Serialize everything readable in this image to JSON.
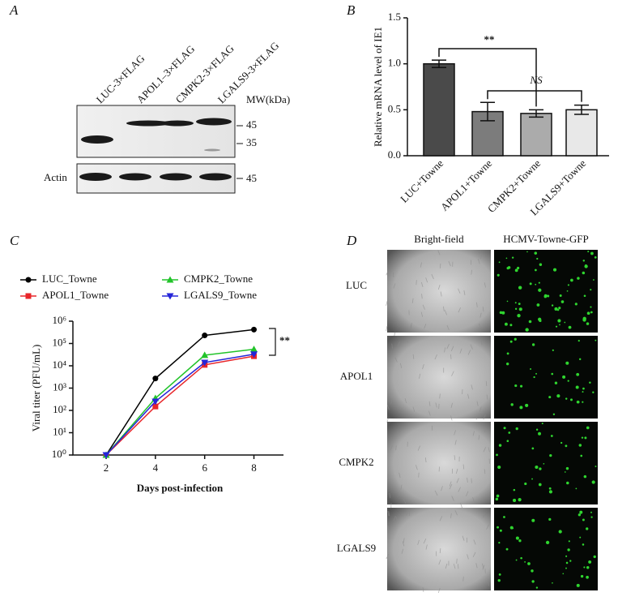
{
  "blot": {
    "panel": "A",
    "lanes": [
      "LUC-3×FLAG",
      "APOL1–3×FLAG",
      "CMPK2-3×FLAG",
      "LGALS9-3×FLAG"
    ],
    "mw_header": "MW(kDa)",
    "mw_top": [
      "45",
      "35"
    ],
    "loading_label": "Actin",
    "mw_bottom": "45"
  },
  "chart_data": [
    {
      "type": "bar",
      "panel": "B",
      "y_label": "Relative mRNA level of IE1",
      "categories": [
        "LUC+Towne",
        "APOL1+Towne",
        "CMPK2+Towne",
        "LGALS9+Towne"
      ],
      "values": [
        1.0,
        0.48,
        0.46,
        0.5
      ],
      "errors": [
        0.04,
        0.1,
        0.04,
        0.05
      ],
      "colors": [
        "#4a4a4a",
        "#7c7c7c",
        "#ababab",
        "#e8e8e8"
      ],
      "ylim": [
        0,
        1.5
      ],
      "yticks": [
        {
          "value": 0,
          "label": "0.0"
        },
        {
          "value": 0.5,
          "label": "0.5"
        },
        {
          "value": 1,
          "label": "1.0"
        },
        {
          "value": 1.5,
          "label": "1.5"
        }
      ],
      "annotations": [
        "**",
        "NS"
      ]
    },
    {
      "type": "line",
      "panel": "C",
      "y_label": "Viral titer (PFU/mL)",
      "x_label": "Days post-infection",
      "log_y": true,
      "x": [
        2,
        4,
        6,
        8
      ],
      "xlim": [
        0.65,
        9.2
      ],
      "xticks": [
        2,
        4,
        6,
        8
      ],
      "ylim": [
        1,
        1000000
      ],
      "yticks": [
        {
          "value": 1,
          "label": "10⁰"
        },
        {
          "value": 10,
          "label": "10¹"
        },
        {
          "value": 100,
          "label": "10²"
        },
        {
          "value": 1000,
          "label": "10³"
        },
        {
          "value": 10000,
          "label": "10⁴"
        },
        {
          "value": 100000,
          "label": "10⁵"
        },
        {
          "value": 1000000,
          "label": "10⁶"
        }
      ],
      "series": [
        {
          "name": "LUC_Towne",
          "color": "#000000",
          "marker": "circle",
          "values": [
            1,
            2700,
            230000,
            420000
          ]
        },
        {
          "name": "APOL1_Towne",
          "color": "#e8262a",
          "marker": "square",
          "values": [
            1,
            150,
            11000,
            27000
          ]
        },
        {
          "name": "CMPK2_Towne",
          "color": "#22c32a",
          "marker": "triangle-up",
          "values": [
            1,
            350,
            30000,
            55000
          ]
        },
        {
          "name": "LGALS9_Towne",
          "color": "#2525d8",
          "marker": "triangle-down",
          "values": [
            1,
            250,
            14000,
            33000
          ]
        }
      ],
      "annotations": [
        "**"
      ]
    }
  ],
  "micrographs": {
    "panel": "D",
    "columns": [
      "Bright-field",
      "HCMV-Towne-GFP"
    ],
    "rows": [
      "LUC",
      "APOL1",
      "CMPK2",
      "LGALS9"
    ]
  }
}
